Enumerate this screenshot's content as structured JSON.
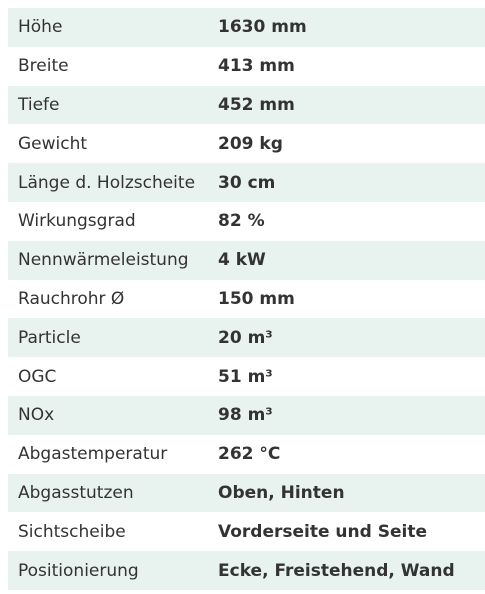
{
  "specs": [
    {
      "label": "Höhe",
      "value": "1630 mm"
    },
    {
      "label": "Breite",
      "value": "413 mm"
    },
    {
      "label": "Tiefe",
      "value": "452 mm"
    },
    {
      "label": "Gewicht",
      "value": "209 kg"
    },
    {
      "label": "Länge d. Holzscheite",
      "value": "30 cm"
    },
    {
      "label": "Wirkungsgrad",
      "value": "82 %"
    },
    {
      "label": "Nennwärmeleistung",
      "value": "4 kW"
    },
    {
      "label": "Rauchrohr Ø",
      "value": "150 mm"
    },
    {
      "label": "Particle",
      "value": "20 m³"
    },
    {
      "label": "OGC",
      "value": "51 m³"
    },
    {
      "label": "NOx",
      "value": "98 m³"
    },
    {
      "label": "Abgastemperatur",
      "value": "262 °C"
    },
    {
      "label": "Abgasstutzen",
      "value": "Oben, Hinten"
    },
    {
      "label": "Sichtscheibe",
      "value": "Vorderseite und Seite"
    },
    {
      "label": "Positionierung",
      "value": "Ecke, Freistehend, Wand"
    }
  ],
  "colors": {
    "stripe": "#e8f2ee",
    "text": "#333333"
  }
}
